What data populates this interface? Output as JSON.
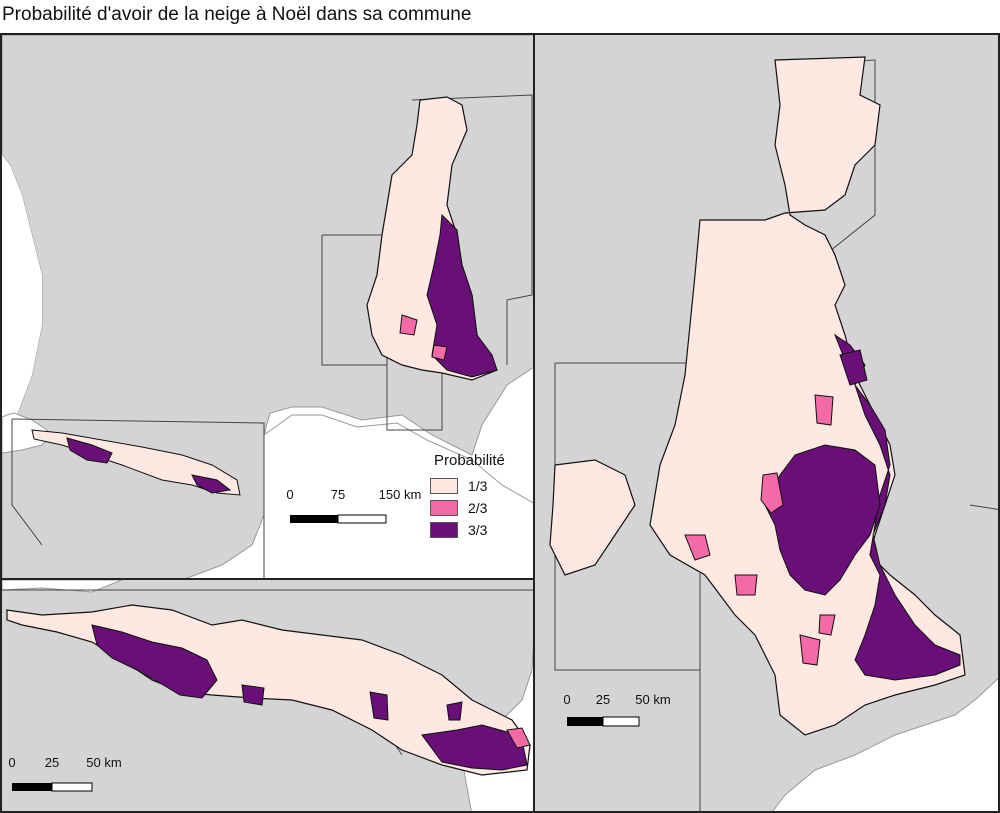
{
  "title": "Probabilité d'avoir de la neige à Noël dans sa commune",
  "legend": {
    "title": "Probabilité",
    "items": [
      {
        "label": "1/3",
        "color": "#fde8e2"
      },
      {
        "label": "2/3",
        "color": "#f46aa6"
      },
      {
        "label": "3/3",
        "color": "#6a0f78"
      }
    ]
  },
  "colors": {
    "land": "#d4d4d4",
    "sea": "#ffffff",
    "boundary": "#1a1a1a",
    "coast": "#999999"
  },
  "scalebars": {
    "overview": {
      "labels": [
        "0",
        "75",
        "150 km"
      ]
    },
    "pyrenees": {
      "labels": [
        "0",
        "25",
        "50 km"
      ]
    },
    "alps": {
      "labels": [
        "0",
        "25",
        "50 km"
      ]
    }
  },
  "panels": {
    "overview": {
      "name": "overview-map"
    },
    "pyrenees": {
      "name": "pyrenees-map"
    },
    "alps": {
      "name": "alps-map"
    }
  }
}
